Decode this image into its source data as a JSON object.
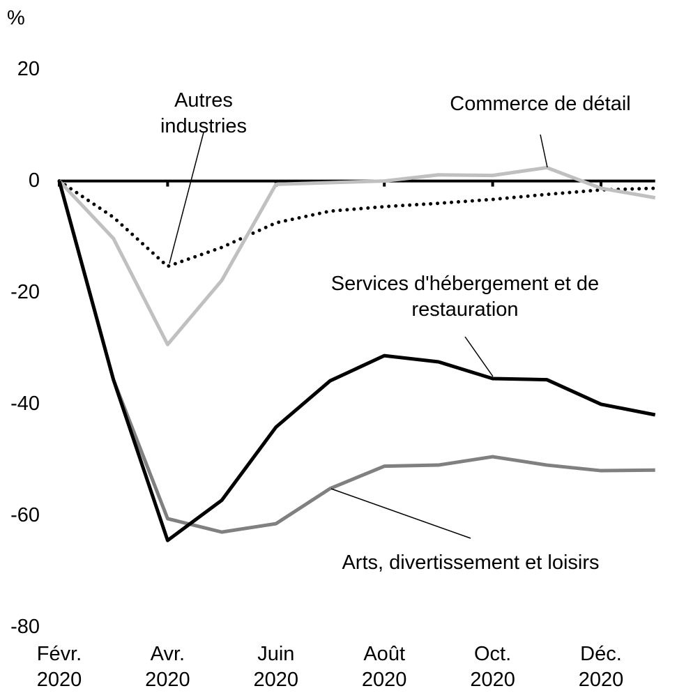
{
  "chart_data": {
    "type": "line",
    "y_label": "%",
    "categories": [
      "Févr. 2020",
      null,
      "Avr. 2020",
      null,
      "Juin 2020",
      null,
      "Août 2020",
      null,
      "Oct. 2020",
      null,
      "Déc. 2020",
      null
    ],
    "series": [
      {
        "name": "Autres industries",
        "color": "#000000",
        "dash": "dotted",
        "values": [
          0,
          -6.5,
          -15.3,
          -11.9,
          -7.5,
          -5.4,
          -4.6,
          -4,
          -3.3,
          -2.4,
          -1.6,
          -1.3
        ]
      },
      {
        "name": "Commerce de détail",
        "color": "#c0c0c0",
        "dash": "solid",
        "values": [
          0,
          -10.3,
          -29.3,
          -17.8,
          -0.6,
          -0.3,
          0,
          1.1,
          1,
          2.4,
          -1.3,
          -3
        ]
      },
      {
        "name": "Arts, divertissement et loisirs",
        "color": "#808080",
        "dash": "solid",
        "values": [
          0,
          -35.6,
          -60.5,
          -62.9,
          -61.4,
          -55.1,
          -51.1,
          -50.9,
          -49.4,
          -50.9,
          -51.9,
          -51.8
        ]
      },
      {
        "name": "Services d'hébergement et de restauration",
        "color": "#000000",
        "dash": "solid",
        "values": [
          0,
          -35.6,
          -64.4,
          -57.2,
          -44.1,
          -35.8,
          -31.3,
          -32.4,
          -35.4,
          -35.6,
          -40,
          -41.9
        ]
      }
    ],
    "ylim": [
      -80,
      20
    ],
    "yticks": [
      -80,
      -60,
      -40,
      -20,
      0,
      20
    ],
    "grid": false
  }
}
